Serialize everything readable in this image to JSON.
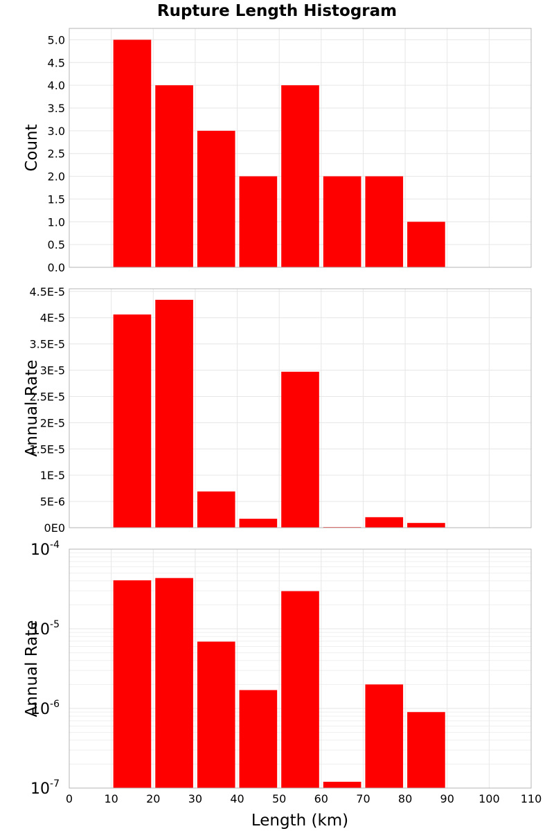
{
  "colors": {
    "bar": "#ff0000",
    "background": "#ffffff",
    "frame": "#b4b4b4",
    "grid": "#e6e6e6"
  },
  "chart_data": {
    "type": "bar",
    "title": "Rupture Length Histogram",
    "xlabel": "Length (km)",
    "xlim": [
      0,
      110
    ],
    "x_ticks": [
      "0",
      "10",
      "20",
      "30",
      "40",
      "50",
      "60",
      "70",
      "80",
      "90",
      "100",
      "110"
    ],
    "bin_width": 10,
    "categories": [
      "10-20",
      "20-30",
      "30-40",
      "40-50",
      "50-60",
      "60-70",
      "70-80",
      "80-90"
    ],
    "bin_starts": [
      10,
      20,
      30,
      40,
      50,
      60,
      70,
      80
    ],
    "panels": [
      {
        "ylabel": "Count",
        "yscale": "linear",
        "ylim": [
          0,
          5.25
        ],
        "y_ticks": [
          {
            "v": 0,
            "label": "0.0"
          },
          {
            "v": 0.5,
            "label": "0.5"
          },
          {
            "v": 1,
            "label": "1.0"
          },
          {
            "v": 1.5,
            "label": "1.5"
          },
          {
            "v": 2,
            "label": "2.0"
          },
          {
            "v": 2.5,
            "label": "2.5"
          },
          {
            "v": 3,
            "label": "3.0"
          },
          {
            "v": 3.5,
            "label": "3.5"
          },
          {
            "v": 4,
            "label": "4.0"
          },
          {
            "v": 4.5,
            "label": "4.5"
          },
          {
            "v": 5,
            "label": "5.0"
          }
        ],
        "values": [
          5,
          4,
          3,
          2,
          4,
          2,
          2,
          1
        ]
      },
      {
        "ylabel": "Annual Rate",
        "yscale": "linear",
        "ylim": [
          0,
          4.55e-05
        ],
        "y_ticks": [
          {
            "v": 0,
            "label": "0E0"
          },
          {
            "v": 5e-06,
            "label": "5E-6"
          },
          {
            "v": 1e-05,
            "label": "1E-5"
          },
          {
            "v": 1.5e-05,
            "label": "1.5E-5"
          },
          {
            "v": 2e-05,
            "label": "2E-5"
          },
          {
            "v": 2.5e-05,
            "label": "2.5E-5"
          },
          {
            "v": 3e-05,
            "label": "3E-5"
          },
          {
            "v": 3.5e-05,
            "label": "3.5E-5"
          },
          {
            "v": 4e-05,
            "label": "4E-5"
          },
          {
            "v": 4.5e-05,
            "label": "4.5E-5"
          }
        ],
        "values": [
          4.06e-05,
          4.34e-05,
          6.9e-06,
          1.7e-06,
          2.97e-05,
          1.2e-07,
          2e-06,
          9e-07
        ]
      },
      {
        "ylabel": "Annual Rate",
        "yscale": "log",
        "ylim": [
          1e-07,
          0.0001
        ],
        "y_ticks": [
          {
            "v": 1e-07,
            "base": "10",
            "exp": "-7"
          },
          {
            "v": 1e-06,
            "base": "10",
            "exp": "-6"
          },
          {
            "v": 1e-05,
            "base": "10",
            "exp": "-5"
          },
          {
            "v": 0.0001,
            "base": "10",
            "exp": "-4"
          }
        ],
        "values": [
          4.06e-05,
          4.34e-05,
          6.9e-06,
          1.7e-06,
          2.97e-05,
          1.2e-07,
          2e-06,
          9e-07
        ]
      }
    ]
  }
}
